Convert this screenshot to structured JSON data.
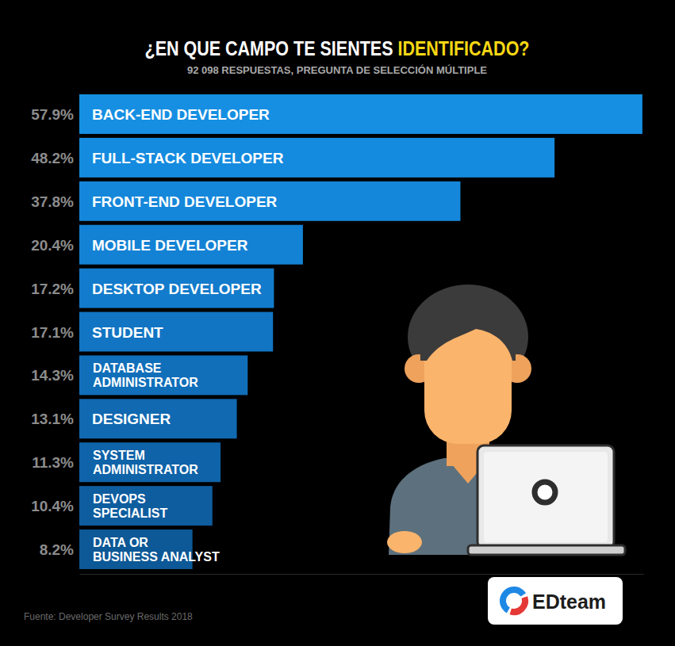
{
  "chart_data": {
    "type": "bar",
    "orientation": "horizontal",
    "title": "¿EN QUE CAMPO TE SIENTES IDENTIFICADO?",
    "subtitle": "92 098 RESPUESTAS, PREGUNTA DE SELECCIÓN MÚLTIPLE",
    "categories": [
      "BACK-END DEVELOPER",
      "FULL-STACK DEVELOPER",
      "FRONT-END DEVELOPER",
      "MOBILE DEVELOPER",
      "DESKTOP DEVELOPER",
      "STUDENT",
      "DATABASE ADMINISTRATOR",
      "DESIGNER",
      "SYSTEM ADMINISTRATOR",
      "DEVOPS SPECIALIST",
      "DATA OR BUSINESS ANALYST"
    ],
    "values": [
      57.9,
      48.2,
      37.8,
      20.4,
      17.2,
      17.1,
      14.3,
      13.1,
      11.3,
      10.4,
      8.2
    ],
    "value_labels": [
      "57.9%",
      "48.2%",
      "37.8%",
      "20.4%",
      "17.2%",
      "17.1%",
      "14.3%",
      "13.1%",
      "11.3%",
      "10.4%",
      "8.2%"
    ],
    "colors": [
      "#168fe2",
      "#158bdf",
      "#1587da",
      "#1482d4",
      "#137bcb",
      "#1275c3",
      "#116fba",
      "#1069b1",
      "#0f63a8",
      "#0e5d9f",
      "#0d5896"
    ],
    "xlim": [
      -4.3,
      58
    ],
    "xticks": [],
    "grid": false,
    "data_labels": true,
    "tick_labels": false,
    "annotations": [
      "Fuente: Developer Survey Results 2018",
      "EDteam"
    ]
  }
}
